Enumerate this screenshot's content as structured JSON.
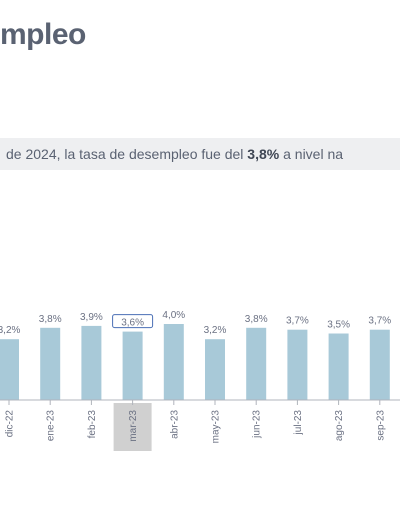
{
  "page": {
    "title": "mpleo",
    "subtitle_pre": "de 2024, la tasa de desempleo fue del ",
    "subtitle_bold": "3,8%",
    "subtitle_post": " a nivel na"
  },
  "colors": {
    "bar": "#a8c9d8",
    "label": "#6b7183",
    "highlight_bg": "#d0d0d0",
    "highlight_border": "#4a6fb5"
  },
  "chart_data": {
    "type": "bar",
    "categories": [
      "dic-22",
      "ene-23",
      "feb-23",
      "mar-23",
      "abr-23",
      "may-23",
      "jun-23",
      "jul-23",
      "ago-23",
      "sep-23"
    ],
    "values": [
      3.2,
      3.8,
      3.9,
      3.6,
      4.0,
      3.2,
      3.8,
      3.7,
      3.5,
      3.7
    ],
    "value_labels": [
      "3,2%",
      "3,8%",
      "3,9%",
      "3,6%",
      "4,0%",
      "3,2%",
      "3,8%",
      "3,7%",
      "3,5%",
      "3,7%"
    ],
    "highlighted_category": "mar-23",
    "title": "",
    "xlabel": "",
    "ylabel": "",
    "ylim": [
      0,
      4.0
    ]
  }
}
